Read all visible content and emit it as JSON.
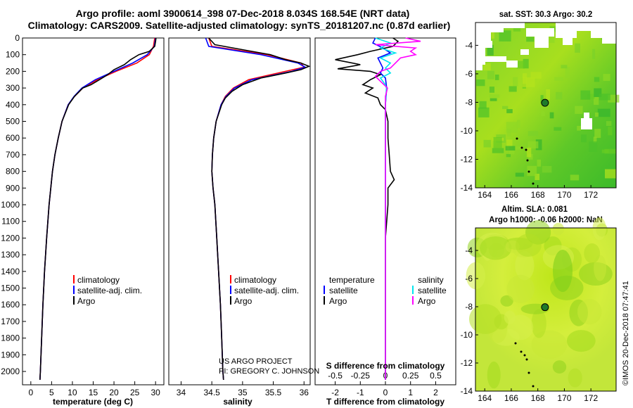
{
  "header": {
    "title_line1": "Argo profile: aoml 3900614_398 07-Dec-2018 8.034S 168.54E (NRT data)",
    "title_line2": "Climatology: CARS2009. Satellite-adjusted climatology: synTS_20181207.nc (0.87d earlier)"
  },
  "colors": {
    "climatology": "#ff0000",
    "satellite": "#0000ff",
    "argo": "#000000",
    "s_satellite": "#00e5ee",
    "s_argo": "#ff00ff"
  },
  "chart_data": [
    {
      "type": "line",
      "name": "temperature",
      "xlabel": "temperature (deg C)",
      "ylabel": "",
      "xlim": [
        -2,
        32
      ],
      "ylim": [
        2080,
        0
      ],
      "xticks": [
        0,
        5,
        10,
        15,
        20,
        25,
        30
      ],
      "yticks": [
        0,
        100,
        200,
        300,
        400,
        500,
        600,
        700,
        800,
        900,
        1000,
        1100,
        1200,
        1300,
        1400,
        1500,
        1600,
        1700,
        1800,
        1900,
        2000
      ],
      "legend": [
        "climatology",
        "satellite-adj. clim.",
        "Argo"
      ],
      "legend_position": "lower-right",
      "series": [
        {
          "name": "climatology",
          "depth": [
            0,
            50,
            100,
            150,
            200,
            250,
            300,
            350,
            400,
            500,
            600,
            700,
            800,
            1000,
            1200,
            1400,
            1600,
            1800,
            2000,
            2050
          ],
          "values": [
            29.8,
            29.5,
            28.5,
            25.5,
            20.5,
            16.0,
            12.5,
            10.5,
            9.0,
            7.5,
            6.6,
            5.8,
            5.2,
            4.4,
            3.8,
            3.3,
            2.9,
            2.6,
            2.3,
            2.2
          ]
        },
        {
          "name": "satellite-adj. clim.",
          "depth": [
            0,
            50,
            100,
            150,
            200,
            250,
            300,
            350,
            400,
            500,
            600,
            700,
            800,
            1000,
            1200,
            1400,
            1600,
            1800,
            2000,
            2050
          ],
          "values": [
            30.0,
            29.7,
            28.0,
            24.5,
            20.0,
            15.5,
            12.3,
            10.4,
            9.0,
            7.5,
            6.6,
            5.8,
            5.2,
            4.4,
            3.8,
            3.3,
            2.9,
            2.6,
            2.3,
            2.2
          ]
        },
        {
          "name": "Argo",
          "depth": [
            0,
            20,
            50,
            80,
            100,
            130,
            160,
            190,
            220,
            250,
            280,
            300,
            350,
            400,
            500,
            600,
            700,
            800,
            1000,
            1200,
            1400,
            1600,
            1800,
            2000,
            2050
          ],
          "values": [
            30.1,
            30.0,
            29.8,
            28.5,
            26.0,
            24.0,
            22.5,
            20.0,
            18.5,
            16.5,
            14.5,
            12.5,
            10.5,
            9.1,
            7.5,
            6.6,
            5.8,
            5.2,
            4.4,
            3.8,
            3.3,
            2.9,
            2.6,
            2.3,
            2.2
          ]
        }
      ]
    },
    {
      "type": "line",
      "name": "salinity",
      "xlabel": "salinity",
      "ylabel": "",
      "xlim": [
        33.8,
        36.1
      ],
      "ylim": [
        2080,
        0
      ],
      "xticks": [
        34,
        34.5,
        35,
        35.5,
        36
      ],
      "legend": [
        "climatology",
        "satellite-adj. clim.",
        "Argo"
      ],
      "legend_position": "lower-right",
      "series": [
        {
          "name": "climatology",
          "depth": [
            0,
            50,
            100,
            150,
            175,
            200,
            250,
            300,
            350,
            400,
            500,
            600,
            700,
            800,
            900,
            1000,
            1200,
            1400,
            1600,
            1800,
            2000,
            2050
          ],
          "values": [
            34.45,
            34.5,
            35.4,
            35.95,
            36.0,
            35.7,
            35.1,
            34.85,
            34.72,
            34.65,
            34.57,
            34.53,
            34.51,
            34.5,
            34.52,
            34.55,
            34.58,
            34.61,
            34.64,
            34.66,
            34.68,
            34.69
          ]
        },
        {
          "name": "satellite-adj. clim.",
          "depth": [
            0,
            50,
            100,
            150,
            175,
            200,
            250,
            300,
            350,
            400,
            500,
            600,
            700,
            800,
            900,
            1000,
            1200,
            1400,
            1600,
            1800,
            2000,
            2050
          ],
          "values": [
            34.4,
            34.45,
            35.3,
            35.9,
            36.02,
            35.8,
            35.15,
            34.87,
            34.73,
            34.65,
            34.57,
            34.53,
            34.51,
            34.5,
            34.52,
            34.55,
            34.58,
            34.61,
            34.64,
            34.66,
            34.68,
            34.69
          ]
        },
        {
          "name": "Argo",
          "depth": [
            0,
            40,
            70,
            100,
            130,
            150,
            170,
            190,
            210,
            240,
            280,
            320,
            360,
            400,
            500,
            600,
            700,
            800,
            900,
            1000,
            1200,
            1400,
            1600,
            1800,
            2000,
            2050
          ],
          "values": [
            34.45,
            34.55,
            35.0,
            35.45,
            35.7,
            35.95,
            36.08,
            35.95,
            35.7,
            35.3,
            35.0,
            34.83,
            34.72,
            34.66,
            34.57,
            34.53,
            34.51,
            34.5,
            34.52,
            34.55,
            34.58,
            34.61,
            34.64,
            34.66,
            34.68,
            34.69
          ]
        }
      ]
    },
    {
      "type": "line",
      "name": "difference",
      "xlabel": "T difference from climatology",
      "xlabel2": "S difference from climatology",
      "xlim": [
        -2.8,
        2.8
      ],
      "ylim": [
        2080,
        0
      ],
      "xticks": [
        -2,
        -1,
        0,
        1,
        2
      ],
      "xticks_s": [
        -0.5,
        -0.25,
        0,
        0.25,
        0.5
      ],
      "xtick_labels_s": [
        "-0.5",
        "-0.25",
        "0",
        "0.25",
        "0.5"
      ],
      "legend_temperature": {
        "header": "temperature",
        "items": [
          "satellite",
          "Argo"
        ]
      },
      "legend_salinity": {
        "header": "salinity",
        "items": [
          "satellite",
          "Argo"
        ]
      },
      "legend_position": "lower-center",
      "series": [
        {
          "name": "T satellite",
          "depth": [
            0,
            30,
            60,
            90,
            120,
            150,
            180,
            210,
            240,
            300,
            400,
            500,
            800,
            1200,
            2050
          ],
          "values": [
            -0.4,
            -0.5,
            -0.1,
            0.2,
            -0.3,
            -0.2,
            -0.1,
            -0.2,
            0.0,
            0.05,
            0.0,
            0.0,
            0.0,
            0.0,
            0.0
          ]
        },
        {
          "name": "T Argo",
          "depth": [
            0,
            20,
            50,
            80,
            100,
            130,
            160,
            185,
            200,
            220,
            250,
            280,
            300,
            330,
            360,
            400,
            430,
            500,
            600,
            700,
            800,
            850,
            900,
            1000,
            1200,
            2050
          ],
          "values": [
            0.3,
            0.5,
            0.3,
            -0.6,
            -1.1,
            -2.0,
            -1.0,
            -1.9,
            -0.6,
            -0.2,
            -0.6,
            -0.9,
            -0.5,
            -0.8,
            -0.3,
            -0.2,
            0.0,
            0.1,
            0.1,
            0.15,
            0.2,
            0.35,
            0.1,
            0.1,
            0.0,
            0.0
          ]
        },
        {
          "name": "S satellite",
          "depth": [
            0,
            30,
            60,
            90,
            120,
            150,
            180,
            210,
            240,
            280,
            300,
            400,
            600,
            1000,
            1500,
            2050
          ],
          "values": [
            -0.1,
            0.05,
            -0.05,
            0.1,
            -0.05,
            0.05,
            0.0,
            0.05,
            -0.05,
            0.0,
            0.01,
            0.0,
            0.0,
            0.0,
            0.0,
            0.0
          ]
        },
        {
          "name": "S Argo",
          "depth": [
            0,
            20,
            40,
            60,
            80,
            100,
            120,
            150,
            180,
            200,
            230,
            260,
            300,
            350,
            400,
            500,
            600,
            800,
            1000,
            2050
          ],
          "values": [
            0.2,
            0.35,
            -0.1,
            0.3,
            0.25,
            0.3,
            0.15,
            0.1,
            0.05,
            -0.05,
            -0.1,
            -0.05,
            0.02,
            0.0,
            0.0,
            0.0,
            0.0,
            0.0,
            0.0,
            0.0
          ]
        }
      ]
    },
    {
      "type": "heatmap",
      "name": "sst-map",
      "title": "sat. SST: 30.3 Argo: 30.2",
      "xticks": [
        164,
        166,
        168,
        170,
        172
      ],
      "yticks": [
        -4,
        -6,
        -8,
        -10,
        -12,
        -14
      ],
      "xlim": [
        163.3,
        173.9
      ],
      "ylim": [
        -14,
        -2.4
      ],
      "marker": {
        "lon": 168.54,
        "lat": -8.034
      }
    },
    {
      "type": "heatmap",
      "name": "sla-map",
      "title_line1": "Altim. SLA: 0.081",
      "title_line2": "Argo h1000: -0.06 h2000: NaN",
      "xticks": [
        164,
        166,
        168,
        170,
        172
      ],
      "yticks": [
        -4,
        -6,
        -8,
        -10,
        -12,
        -14
      ],
      "xlim": [
        163.3,
        173.9
      ],
      "ylim": [
        -14,
        -2.4
      ],
      "marker": {
        "lon": 168.54,
        "lat": -8.034
      }
    }
  ],
  "credits": {
    "project": "US ARGO PROJECT",
    "pi": "PI: GREGORY C. JOHNSON",
    "imos": "©IMOS 20-Dec-2018 07:47:41"
  }
}
